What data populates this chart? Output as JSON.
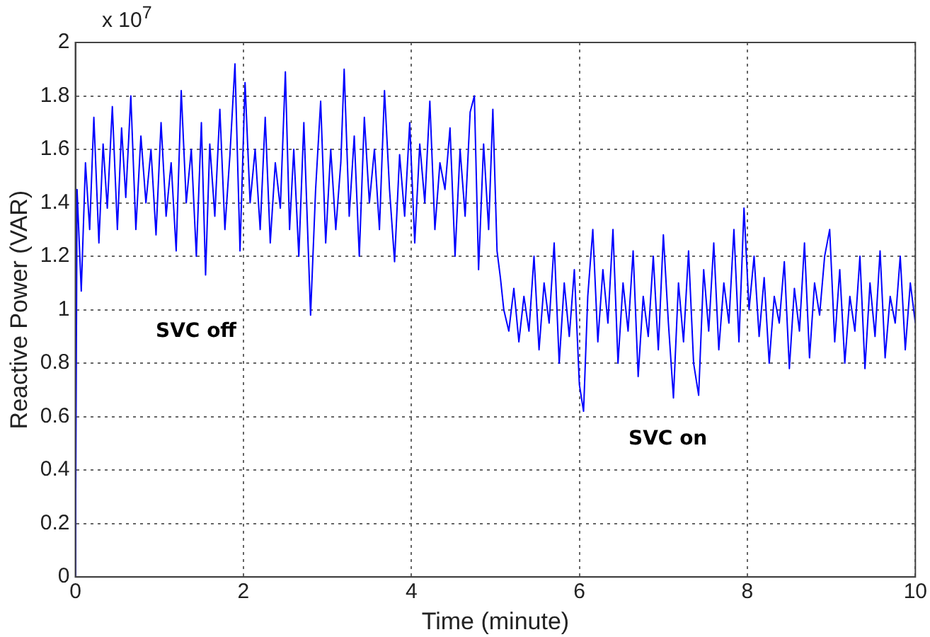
{
  "chart_data": {
    "type": "line",
    "xlabel": "Time (minute)",
    "ylabel": "Reactive Power (VAR)",
    "x": [
      0,
      0.02,
      0.07,
      0.12,
      0.17,
      0.22,
      0.28,
      0.33,
      0.38,
      0.44,
      0.5,
      0.55,
      0.6,
      0.66,
      0.72,
      0.78,
      0.84,
      0.9,
      0.96,
      1.02,
      1.08,
      1.14,
      1.2,
      1.26,
      1.32,
      1.38,
      1.44,
      1.5,
      1.55,
      1.6,
      1.66,
      1.72,
      1.78,
      1.84,
      1.9,
      1.96,
      2.02,
      2.08,
      2.14,
      2.2,
      2.26,
      2.32,
      2.38,
      2.44,
      2.5,
      2.55,
      2.6,
      2.66,
      2.72,
      2.8,
      2.86,
      2.92,
      2.98,
      3.04,
      3.1,
      3.16,
      3.2,
      3.26,
      3.32,
      3.38,
      3.44,
      3.5,
      3.56,
      3.62,
      3.68,
      3.74,
      3.8,
      3.86,
      3.92,
      3.98,
      4.04,
      4.1,
      4.16,
      4.22,
      4.28,
      4.34,
      4.4,
      4.46,
      4.52,
      4.58,
      4.64,
      4.7,
      4.75,
      4.8,
      4.86,
      4.92,
      4.97,
      5.02,
      5.06,
      5.1,
      5.16,
      5.22,
      5.28,
      5.34,
      5.4,
      5.46,
      5.52,
      5.58,
      5.64,
      5.7,
      5.76,
      5.82,
      5.88,
      5.94,
      6.0,
      6.05,
      6.1,
      6.16,
      6.22,
      6.28,
      6.34,
      6.4,
      6.46,
      6.52,
      6.58,
      6.64,
      6.7,
      6.76,
      6.82,
      6.88,
      6.94,
      7.0,
      7.06,
      7.12,
      7.18,
      7.24,
      7.3,
      7.36,
      7.42,
      7.48,
      7.54,
      7.6,
      7.66,
      7.72,
      7.78,
      7.84,
      7.9,
      7.96,
      8.02,
      8.08,
      8.14,
      8.2,
      8.26,
      8.32,
      8.38,
      8.44,
      8.5,
      8.56,
      8.62,
      8.68,
      8.74,
      8.8,
      8.86,
      8.92,
      8.98,
      9.04,
      9.1,
      9.16,
      9.22,
      9.28,
      9.34,
      9.4,
      9.46,
      9.52,
      9.58,
      9.64,
      9.7,
      9.76,
      9.82,
      9.88,
      9.94,
      10
    ],
    "series": [
      {
        "color": "#0000ff",
        "values": [
          0,
          1.45,
          1.07,
          1.55,
          1.3,
          1.72,
          1.25,
          1.62,
          1.38,
          1.76,
          1.3,
          1.68,
          1.42,
          1.8,
          1.3,
          1.65,
          1.4,
          1.6,
          1.28,
          1.7,
          1.35,
          1.55,
          1.22,
          1.82,
          1.4,
          1.6,
          1.2,
          1.7,
          1.13,
          1.62,
          1.35,
          1.75,
          1.3,
          1.58,
          1.92,
          1.22,
          1.85,
          1.4,
          1.6,
          1.3,
          1.72,
          1.25,
          1.55,
          1.38,
          1.89,
          1.3,
          1.6,
          1.2,
          1.7,
          0.98,
          1.45,
          1.78,
          1.25,
          1.6,
          1.3,
          1.55,
          1.9,
          1.35,
          1.65,
          1.2,
          1.72,
          1.4,
          1.6,
          1.3,
          1.82,
          1.45,
          1.18,
          1.58,
          1.35,
          1.7,
          1.25,
          1.62,
          1.4,
          1.78,
          1.3,
          1.55,
          1.45,
          1.68,
          1.2,
          1.6,
          1.35,
          1.74,
          1.8,
          1.15,
          1.62,
          1.3,
          1.75,
          1.22,
          1.12,
          1.0,
          0.92,
          1.08,
          0.88,
          1.05,
          0.92,
          1.2,
          0.85,
          1.1,
          0.95,
          1.25,
          0.8,
          1.1,
          0.9,
          1.15,
          0.72,
          0.62,
          1.05,
          1.3,
          0.88,
          1.15,
          0.95,
          1.3,
          0.8,
          1.1,
          0.92,
          1.22,
          0.75,
          1.05,
          0.9,
          1.2,
          0.85,
          1.28,
          0.95,
          0.67,
          1.1,
          0.88,
          1.22,
          0.8,
          0.68,
          1.15,
          0.92,
          1.25,
          0.85,
          1.1,
          0.95,
          1.3,
          0.88,
          1.38,
          1.0,
          1.2,
          0.9,
          1.12,
          0.8,
          1.05,
          0.95,
          1.18,
          0.78,
          1.08,
          0.92,
          1.25,
          0.82,
          1.1,
          0.98,
          1.2,
          1.3,
          0.88,
          1.15,
          0.8,
          1.05,
          0.92,
          1.2,
          0.78,
          1.1,
          0.9,
          1.22,
          0.82,
          1.05,
          0.95,
          1.2,
          0.85,
          1.1,
          0.95
        ]
      }
    ],
    "xlim": [
      0,
      10
    ],
    "xticks": [
      0,
      2,
      4,
      6,
      8,
      10
    ],
    "ylim": [
      0,
      2
    ],
    "yticks": [
      0,
      0.2,
      0.4,
      0.6,
      0.8,
      1,
      1.2,
      1.4,
      1.6,
      1.8,
      2
    ],
    "grid": true,
    "marker": "none",
    "line_style": "solid",
    "annotations": [
      "x 10$^{7}$",
      "SVC off",
      "SVC on"
    ]
  }
}
